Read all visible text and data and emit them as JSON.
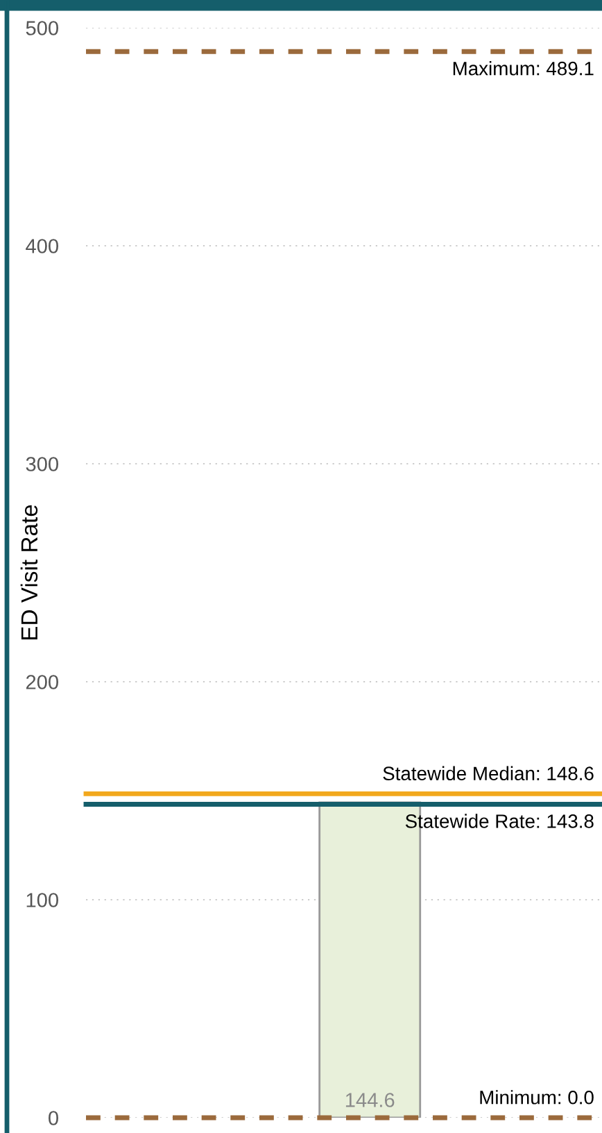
{
  "chart_data": {
    "type": "bar",
    "ylabel": "ED Visit Rate",
    "categories": [
      null
    ],
    "values": [
      144.6
    ],
    "colors": [
      "#e8f0da"
    ],
    "data_labels": true,
    "ylim": [
      0,
      500
    ],
    "yticks": [
      0,
      100,
      200,
      300,
      400,
      500
    ],
    "grid": "y",
    "tick_labels": "y",
    "ref_lines": [
      {
        "axis": "y",
        "value": 489.1,
        "label": "Maximum: 489.1",
        "color": "#9b6a3c",
        "line_style": "dashed"
      },
      {
        "axis": "y",
        "value": 148.6,
        "label": "Statewide Median: 148.6",
        "color": "#f2a81d",
        "line_style": "solid"
      },
      {
        "axis": "y",
        "value": 143.8,
        "label": "Statewide Rate: 143.8",
        "color": "#155e6b",
        "line_style": "solid"
      },
      {
        "axis": "y",
        "value": 0,
        "label": "Minimum: 0.0",
        "color": "#9b6a3c",
        "line_style": "dashed"
      }
    ]
  }
}
